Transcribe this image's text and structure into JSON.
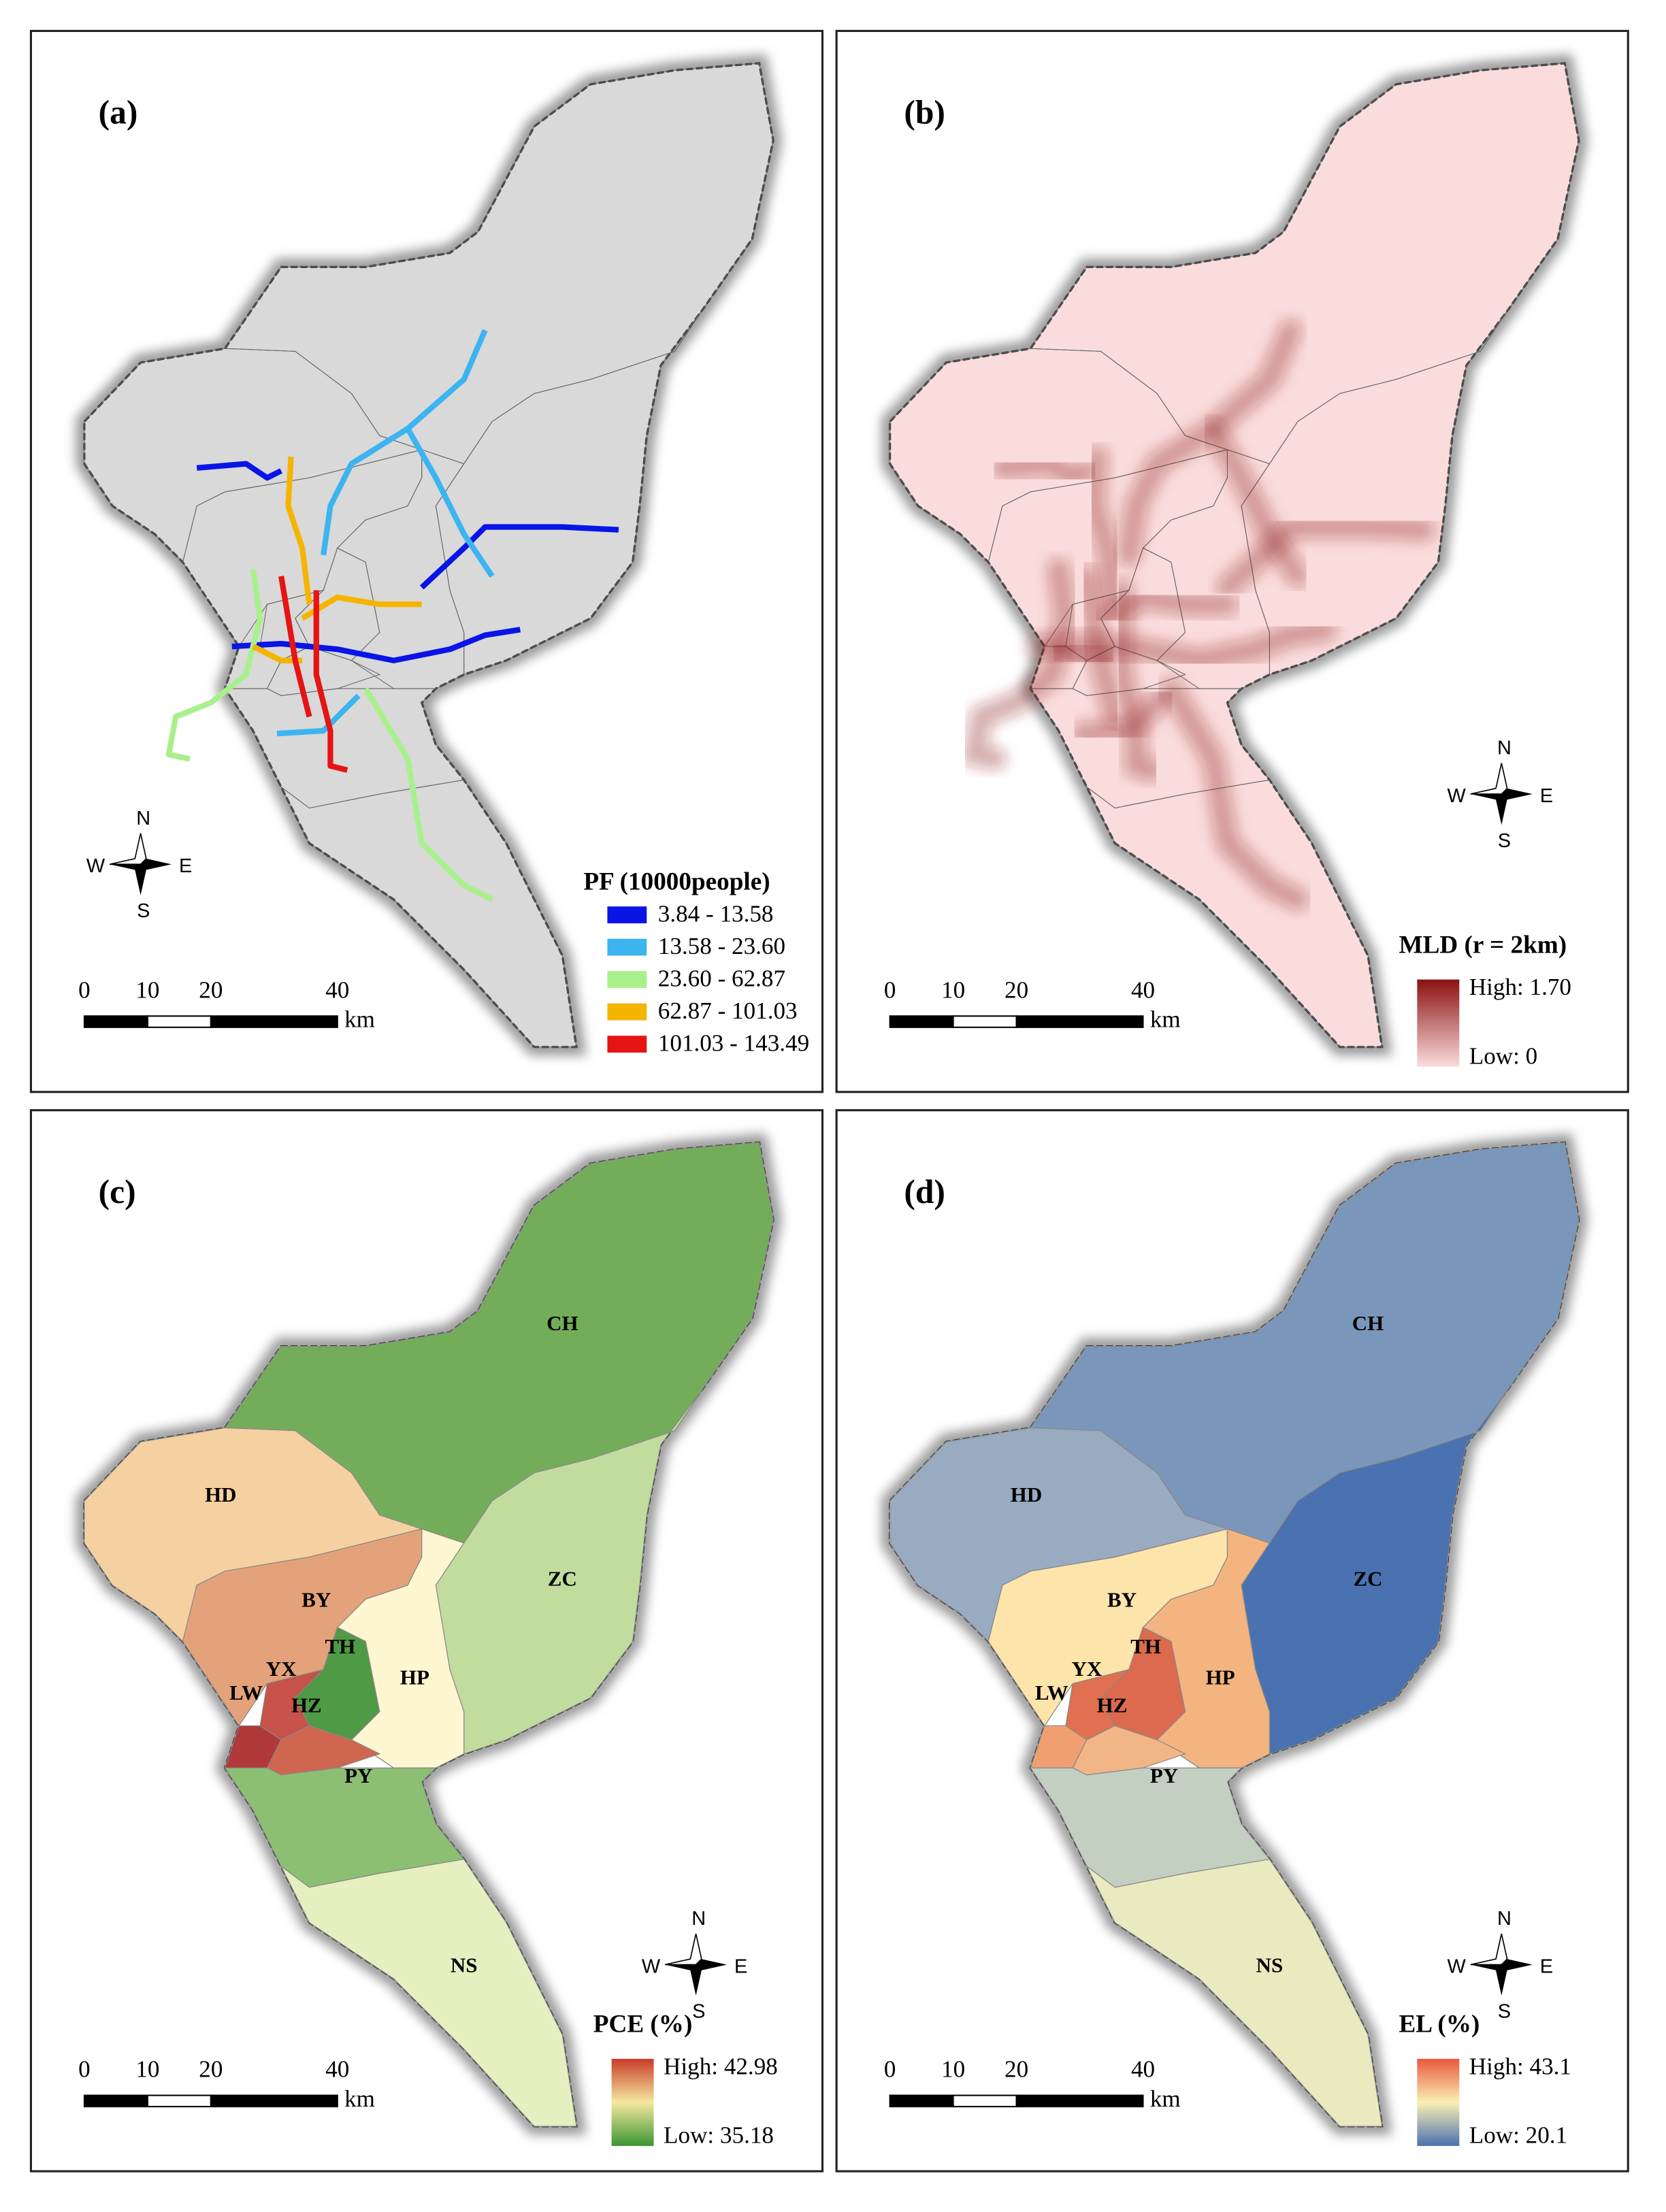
{
  "panels": [
    {
      "label": "(a)",
      "legend": {
        "title": "PF (10000people)",
        "items": [
          {
            "label": "3.84 - 13.58",
            "color": "#0a14e6"
          },
          {
            "label": "13.58 - 23.60",
            "color": "#3cb4f0"
          },
          {
            "label": "23.60 - 62.87",
            "color": "#a8f08c"
          },
          {
            "label": "62.87 - 101.03",
            "color": "#f5b400"
          },
          {
            "label": "101.03 - 143.49",
            "color": "#e61414"
          }
        ]
      },
      "scale": {
        "ticks": [
          0,
          10,
          20,
          40
        ],
        "unit": "km"
      },
      "compass": {
        "n": "N",
        "e": "E",
        "s": "S",
        "w": "W"
      }
    },
    {
      "label": "(b)",
      "legend": {
        "title": "MLD (r = 2km)",
        "high": "High: 1.70",
        "low": "Low: 0",
        "colors": [
          "#8b1010",
          "#fadcdc"
        ]
      },
      "scale": {
        "ticks": [
          0,
          10,
          20,
          40
        ],
        "unit": "km"
      },
      "compass": {
        "n": "N",
        "e": "E",
        "s": "S",
        "w": "W"
      }
    },
    {
      "label": "(c)",
      "legend": {
        "title": "PCE (%)",
        "high": "High: 42.98",
        "low": "Low: 35.18",
        "colors": [
          "#c83c28",
          "#f5e8a0",
          "#3c9632"
        ]
      },
      "scale": {
        "ticks": [
          0,
          10,
          20,
          40
        ],
        "unit": "km"
      },
      "compass": {
        "n": "N",
        "e": "E",
        "s": "S",
        "w": "W"
      },
      "districts": [
        {
          "name": "CH",
          "color": "#74ad5a"
        },
        {
          "name": "HD",
          "color": "#f5d0a0"
        },
        {
          "name": "ZC",
          "color": "#c2dc9e"
        },
        {
          "name": "BY",
          "color": "#e4a27a"
        },
        {
          "name": "HP",
          "color": "#fef6d0"
        },
        {
          "name": "TH",
          "color": "#4f9a45"
        },
        {
          "name": "YX",
          "color": "#c6524a"
        },
        {
          "name": "LW",
          "color": "#b03a3a"
        },
        {
          "name": "HZ",
          "color": "#cf6650"
        },
        {
          "name": "PY",
          "color": "#8cbf72"
        },
        {
          "name": "NS",
          "color": "#e6efc0"
        }
      ]
    },
    {
      "label": "(d)",
      "legend": {
        "title": "EL (%)",
        "high": "High: 43.1",
        "low": "Low: 20.1",
        "colors": [
          "#e8583c",
          "#fbf0b4",
          "#4a72b0"
        ]
      },
      "scale": {
        "ticks": [
          0,
          10,
          20,
          40
        ],
        "unit": "km"
      },
      "compass": {
        "n": "N",
        "e": "E",
        "s": "S",
        "w": "W"
      },
      "districts": [
        {
          "name": "CH",
          "color": "#7a97bb"
        },
        {
          "name": "HD",
          "color": "#98abc0"
        },
        {
          "name": "ZC",
          "color": "#4a72b0"
        },
        {
          "name": "BY",
          "color": "#fde4ab"
        },
        {
          "name": "HP",
          "color": "#f4b480"
        },
        {
          "name": "TH",
          "color": "#dc6a4e"
        },
        {
          "name": "YX",
          "color": "#e0704f"
        },
        {
          "name": "LW",
          "color": "#f0a070"
        },
        {
          "name": "HZ",
          "color": "#f2b585"
        },
        {
          "name": "PY",
          "color": "#c3cfc0"
        },
        {
          "name": "NS",
          "color": "#eaeac0"
        }
      ]
    }
  ]
}
